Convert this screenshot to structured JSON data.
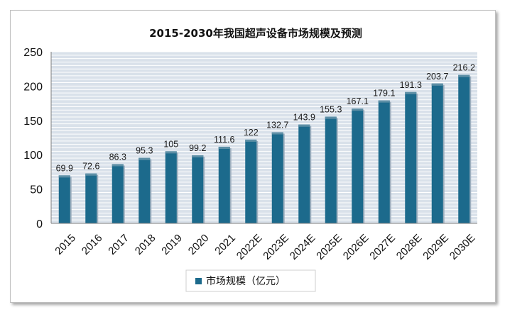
{
  "chart_data": {
    "type": "bar",
    "title": "2015-2030年我国超声设备市场规模及预测",
    "categories": [
      "2015",
      "2016",
      "2017",
      "2018",
      "2019",
      "2020",
      "2021",
      "2022E",
      "2023E",
      "2024E",
      "2025E",
      "2026E",
      "2027E",
      "2028E",
      "2029E",
      "2030E"
    ],
    "series": [
      {
        "name": "市场规模（亿元）",
        "values": [
          69.9,
          72.6,
          86.3,
          95.3,
          105,
          99.2,
          111.6,
          122,
          132.7,
          143.9,
          155.3,
          167.1,
          179.1,
          191.3,
          203.7,
          216.2
        ],
        "labels": [
          "69.9",
          "72.6",
          "86.3",
          "95.3",
          "105",
          "99.2",
          "111.6",
          "122",
          "132.7",
          "143.9",
          "155.3",
          "167.1",
          "179.1",
          "191.3",
          "203.7",
          "216.2"
        ]
      }
    ],
    "ylim": [
      0,
      250
    ],
    "yticks": [
      "0",
      "50",
      "100",
      "150",
      "200",
      "250"
    ],
    "xlabel": "",
    "ylabel": "",
    "grid": true,
    "legend_position": "bottom",
    "colors": {
      "bar": "#1c6a8c",
      "bar_top": "#5d8fa6",
      "plot_background": "#d9e1ea",
      "gridline": "#ffffff",
      "axis": "#7f7f7f"
    }
  }
}
